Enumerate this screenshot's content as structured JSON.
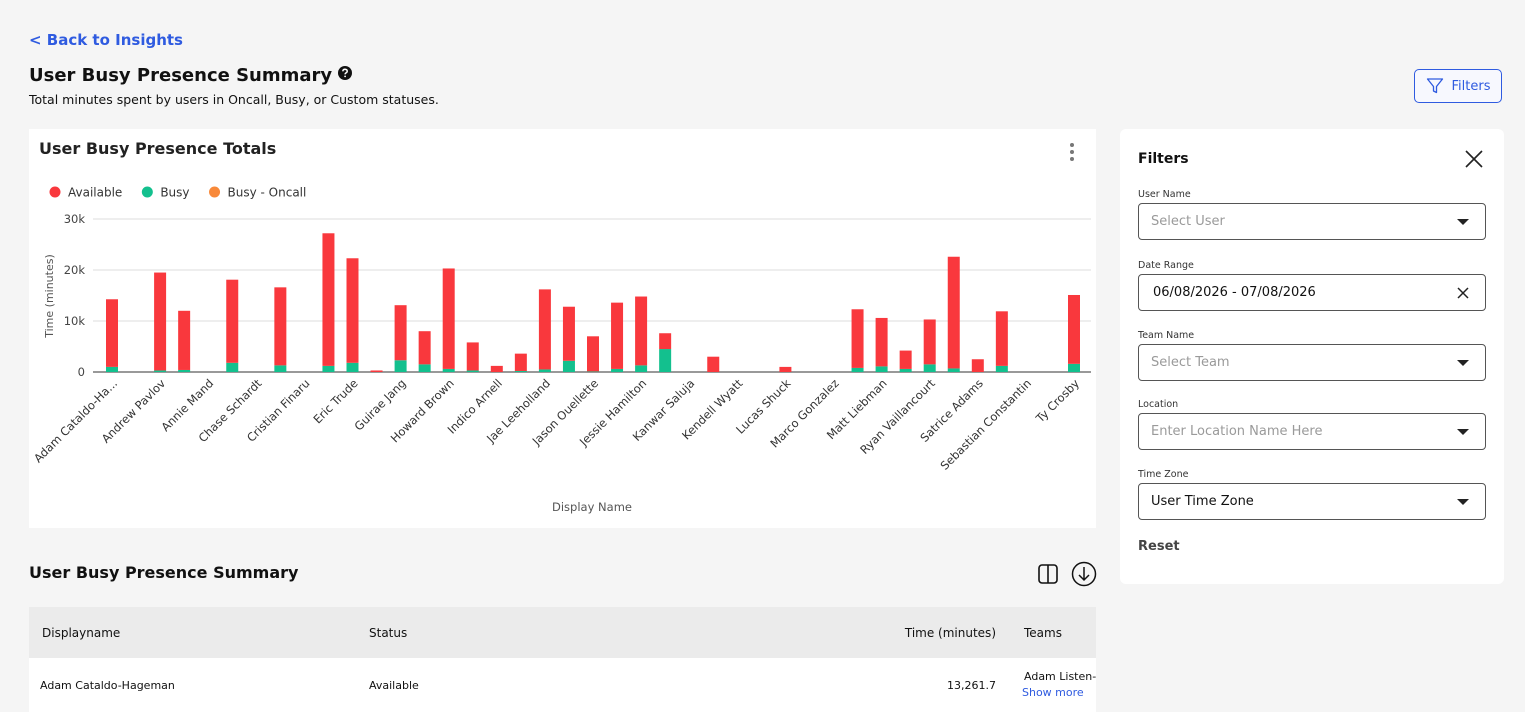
{
  "back_link": "< Back to Insights",
  "header": {
    "title": "User Busy Presence Summary",
    "subtitle": "Total minutes spent by users in Oncall, Busy, or Custom statuses.",
    "filters_button": "Filters"
  },
  "chart_data": {
    "type": "bar",
    "stacked": true,
    "title": "User Busy Presence Totals",
    "x_label": "Display Name",
    "y_label": "Time (minutes)",
    "categories": [
      "Adam Cataldo-Ha...",
      null,
      "Andrew Pavlov",
      null,
      "Annie Mand",
      null,
      "Chase Schardt",
      null,
      "Cristian Finaru",
      null,
      "Eric Trude",
      null,
      "Guirae Jang",
      null,
      "Howard Brown",
      null,
      "Indico Arnell",
      null,
      "Jae Leeholland",
      null,
      "Jason Ouellette",
      null,
      "Jessie Hamilton",
      null,
      "Kanwar Saluja",
      null,
      "Kendell Wyatt",
      null,
      "Lucas Shuck",
      null,
      "Marco Gonzalez",
      null,
      "Matt Liebman",
      null,
      "Ryan Vaillancourt",
      null,
      "Satrice Adams",
      null,
      "Sebastian Constantin",
      null,
      "Ty Crosby"
    ],
    "series": [
      {
        "name": "Available",
        "color": "#f9383d",
        "values": [
          13261.7,
          null,
          19200,
          11600,
          null,
          16300,
          null,
          15300,
          null,
          26000,
          20500,
          300,
          10800,
          6500,
          19700,
          5500,
          1200,
          3400,
          15700,
          10600,
          6900,
          13000,
          13500,
          3100,
          null,
          3000,
          null,
          null,
          1000,
          null,
          null,
          11500,
          9500,
          3600,
          8800,
          21900,
          2500,
          10700,
          null,
          null,
          13500
        ]
      },
      {
        "name": "Busy",
        "color": "#13c08e",
        "values": [
          1000,
          null,
          300,
          400,
          null,
          1800,
          null,
          1300,
          null,
          1200,
          1800,
          0,
          2300,
          1500,
          600,
          300,
          0,
          200,
          500,
          2200,
          100,
          600,
          1300,
          4500,
          null,
          0,
          null,
          null,
          0,
          null,
          null,
          800,
          1100,
          600,
          1500,
          700,
          0,
          1200,
          null,
          null,
          1600
        ]
      },
      {
        "name": "Busy - Oncall",
        "color": "#f8893a",
        "values": [
          0,
          null,
          0,
          0,
          null,
          0,
          null,
          0,
          null,
          0,
          0,
          0,
          0,
          0,
          0,
          0,
          0,
          0,
          0,
          0,
          0,
          0,
          0,
          0,
          null,
          0,
          null,
          null,
          0,
          null,
          null,
          0,
          0,
          0,
          0,
          0,
          0,
          0,
          null,
          null,
          0
        ]
      }
    ],
    "ylim": [
      0,
      30000
    ],
    "yticks": [
      0,
      {
        "value": 10000,
        "label": "10k"
      },
      {
        "value": 20000,
        "label": "20k"
      },
      {
        "value": 30000,
        "label": "30k"
      }
    ],
    "grid": true,
    "legend": "top-left"
  },
  "table": {
    "title": "User Busy Presence Summary",
    "columns": [
      "Displayname",
      "Status",
      "Time (minutes)",
      "Teams"
    ],
    "rows": [
      [
        "Adam Cataldo-Hageman",
        "Available",
        "13,261.7",
        "Adam Listen-I"
      ]
    ],
    "show_more": "Show more"
  },
  "filters": {
    "title": "Filters",
    "fields": [
      {
        "label": "User Name",
        "placeholder": "Select User"
      },
      {
        "label": "Date Range",
        "value": "06/08/2026 - 07/08/2026"
      },
      {
        "label": "Team Name",
        "placeholder": "Select Team"
      },
      {
        "label": "Location",
        "placeholder": "Enter Location Name Here"
      },
      {
        "label": "Time Zone",
        "value": "User Time Zone"
      }
    ],
    "reset": "Reset"
  }
}
